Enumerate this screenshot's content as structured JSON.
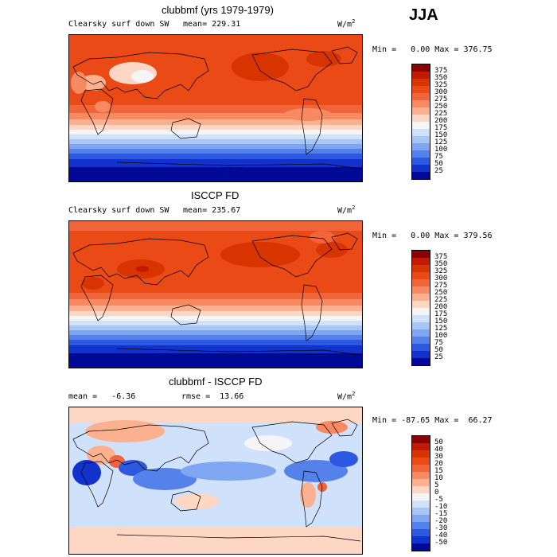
{
  "season": "JJA",
  "units_main": "W/m",
  "units_sup": "2",
  "panels": [
    {
      "title": "clubbmf (yrs 1979-1979)",
      "left_label": "Clearsky surf down SW",
      "mean_label": "mean= 229.31",
      "min_label": "Min =",
      "min_value": "0.00",
      "max_label": "Max =",
      "max_value": "376.75"
    },
    {
      "title": "ISCCP FD",
      "left_label": "Clearsky surf down SW",
      "mean_label": "mean= 235.67",
      "min_label": "Min =",
      "min_value": "0.00",
      "max_label": "Max =",
      "max_value": "379.56"
    },
    {
      "title": "clubbmf - ISCCP FD",
      "left_label": "mean =   -6.36",
      "mean_label": "rmse =  13.66",
      "min_label": "Min =",
      "min_value": "-87.65",
      "max_label": "Max =",
      "max_value": "66.27"
    }
  ],
  "colorbar_abs": {
    "ticks": [
      "375",
      "350",
      "325",
      "300",
      "275",
      "250",
      "225",
      "200",
      "175",
      "150",
      "125",
      "100",
      "75",
      "50",
      "25"
    ],
    "colors": [
      "#8b0000",
      "#c01a00",
      "#d83400",
      "#ea4a16",
      "#f2643a",
      "#f88a62",
      "#fbb08f",
      "#fdd6c4",
      "#f5f5f5",
      "#cfe1fb",
      "#a7c6f6",
      "#7fa6f0",
      "#5482ea",
      "#2c59e0",
      "#1132cc",
      "#000a96"
    ]
  },
  "colorbar_diff": {
    "ticks": [
      "50",
      "40",
      "30",
      "20",
      "15",
      "10",
      "5",
      "0",
      "-5",
      "-10",
      "-15",
      "-20",
      "-30",
      "-40",
      "-50"
    ],
    "colors": [
      "#8b0000",
      "#c01a00",
      "#d83400",
      "#ea4a16",
      "#f2643a",
      "#f88a62",
      "#fbb08f",
      "#fdd6c4",
      "#f5f5f5",
      "#cfe1fb",
      "#a7c6f6",
      "#7fa6f0",
      "#5482ea",
      "#2c59e0",
      "#1132cc",
      "#000a96"
    ]
  }
}
